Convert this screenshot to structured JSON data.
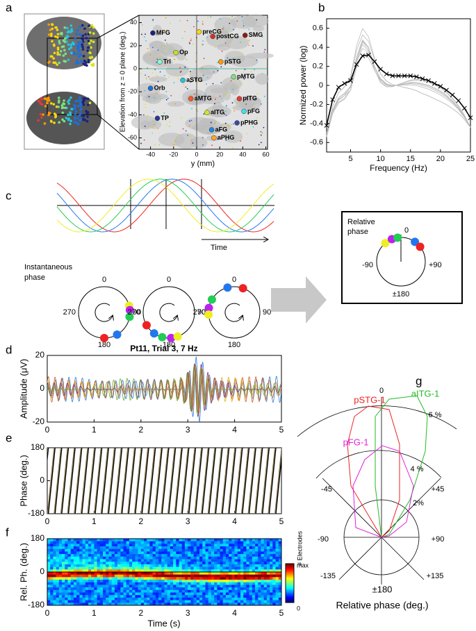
{
  "panel_labels": [
    "a",
    "b",
    "c",
    "d",
    "e",
    "f",
    "g"
  ],
  "a": {
    "x_label": "y (mm)",
    "y_label": "Elevation from z = 0 plane (deg.)",
    "xticks": [
      -40,
      -20,
      0,
      20,
      40,
      60
    ],
    "yticks": [
      40,
      20,
      0,
      -20,
      -40,
      -60
    ],
    "regions": [
      {
        "name": "MFG",
        "color": "#1a237e",
        "y": -38,
        "z": 31
      },
      {
        "name": "preCG",
        "color": "#f5d90a",
        "y": 2,
        "z": 32
      },
      {
        "name": "postCG",
        "color": "#d32f2f",
        "y": 14,
        "z": 28
      },
      {
        "name": "SMG",
        "color": "#8b1a1a",
        "y": 42,
        "z": 29
      },
      {
        "name": "Op",
        "color": "#c0e030",
        "y": -18,
        "z": 14
      },
      {
        "name": "Tri",
        "color": "#7fffd4",
        "y": -32,
        "z": 6
      },
      {
        "name": "pSTG",
        "color": "#ff9800",
        "y": 21,
        "z": 6
      },
      {
        "name": "Orb",
        "color": "#1e6fd9",
        "y": -40,
        "z": -17
      },
      {
        "name": "aSTG",
        "color": "#26c6da",
        "y": -12,
        "z": -10
      },
      {
        "name": "pMTG",
        "color": "#7ee07e",
        "y": 32,
        "z": -7
      },
      {
        "name": "aMTG",
        "color": "#ff5722",
        "y": -5,
        "z": -26
      },
      {
        "name": "pITG",
        "color": "#e53935",
        "y": 37,
        "z": -26
      },
      {
        "name": "aITG",
        "color": "#d4e81a",
        "y": 9,
        "z": -38
      },
      {
        "name": "pFG",
        "color": "#40e0f0",
        "y": 41,
        "z": -37
      },
      {
        "name": "TP",
        "color": "#283593",
        "y": -34,
        "z": -43
      },
      {
        "name": "pPHG",
        "color": "#3949ab",
        "y": 35,
        "z": -47
      },
      {
        "name": "aFG",
        "color": "#1e88e5",
        "y": 13,
        "z": -53
      },
      {
        "name": "aPHG",
        "color": "#ffa726",
        "y": 15,
        "z": -60
      }
    ]
  },
  "b": {
    "type": "line",
    "x_label": "Frequency (Hz)",
    "y_label": "Normized power (log)",
    "color": "#000000",
    "x": [
      1,
      2,
      3,
      4,
      5,
      6,
      7,
      8,
      9,
      10,
      11,
      12,
      13,
      14,
      15,
      16,
      17,
      18,
      19,
      20,
      21,
      22,
      23,
      24,
      25
    ],
    "values": [
      -0.42,
      -0.15,
      -0.02,
      0.02,
      0.05,
      0.22,
      0.31,
      0.32,
      0.25,
      0.17,
      0.12,
      0.1,
      0.1,
      0.1,
      0.1,
      0.09,
      0.07,
      0.05,
      0.02,
      -0.01,
      -0.05,
      -0.1,
      -0.16,
      -0.24,
      -0.34
    ],
    "xlim": [
      1,
      25
    ],
    "ylim": [
      -0.7,
      0.7
    ],
    "xticks": [
      5,
      10,
      15,
      20,
      25
    ],
    "yticks": [
      0.6,
      0.4,
      0.2,
      0,
      -0.2,
      -0.4,
      -0.6
    ]
  },
  "c": {
    "time_label": "Time",
    "inst_label": [
      "Instantaneous",
      "phase"
    ],
    "phase_labels": [
      "0",
      "90",
      "180",
      "270"
    ],
    "relative_label": [
      "Relative",
      "phase"
    ],
    "relative_phase_labels": [
      "0",
      "-90",
      "+90",
      "±180"
    ]
  },
  "time_ticks": [
    0,
    1,
    2,
    3,
    4,
    5
  ],
  "d": {
    "title": "Pt11, Trial 3, 7 Hz",
    "y_label": "Amplitude (μV)",
    "ylim": [
      -20,
      20
    ],
    "yticks": [
      20,
      0,
      -20
    ]
  },
  "e": {
    "y_label": "Phase (deg.)",
    "ylim": [
      -180,
      180
    ],
    "yticks": [
      180,
      0,
      -180
    ]
  },
  "f": {
    "y_label": "Rel. Ph. (deg.)",
    "x_label": "Time  (s)",
    "ylim": [
      -180,
      180
    ],
    "yticks": [
      180,
      0,
      -180
    ],
    "colorbar_label": "# Electrodes",
    "colorbar_ticks": [
      "max",
      "0"
    ]
  },
  "g": {
    "series": [
      "pSTG-1",
      "aITG-1",
      "pFG-1"
    ],
    "angle_labels": [
      "0",
      "-45",
      "+45",
      "-90",
      "+90",
      "-135",
      "+135",
      "±180"
    ],
    "radius_labels": [
      "6 %",
      "4 %",
      "2%"
    ],
    "x_label": "Relative phase (deg.)"
  }
}
